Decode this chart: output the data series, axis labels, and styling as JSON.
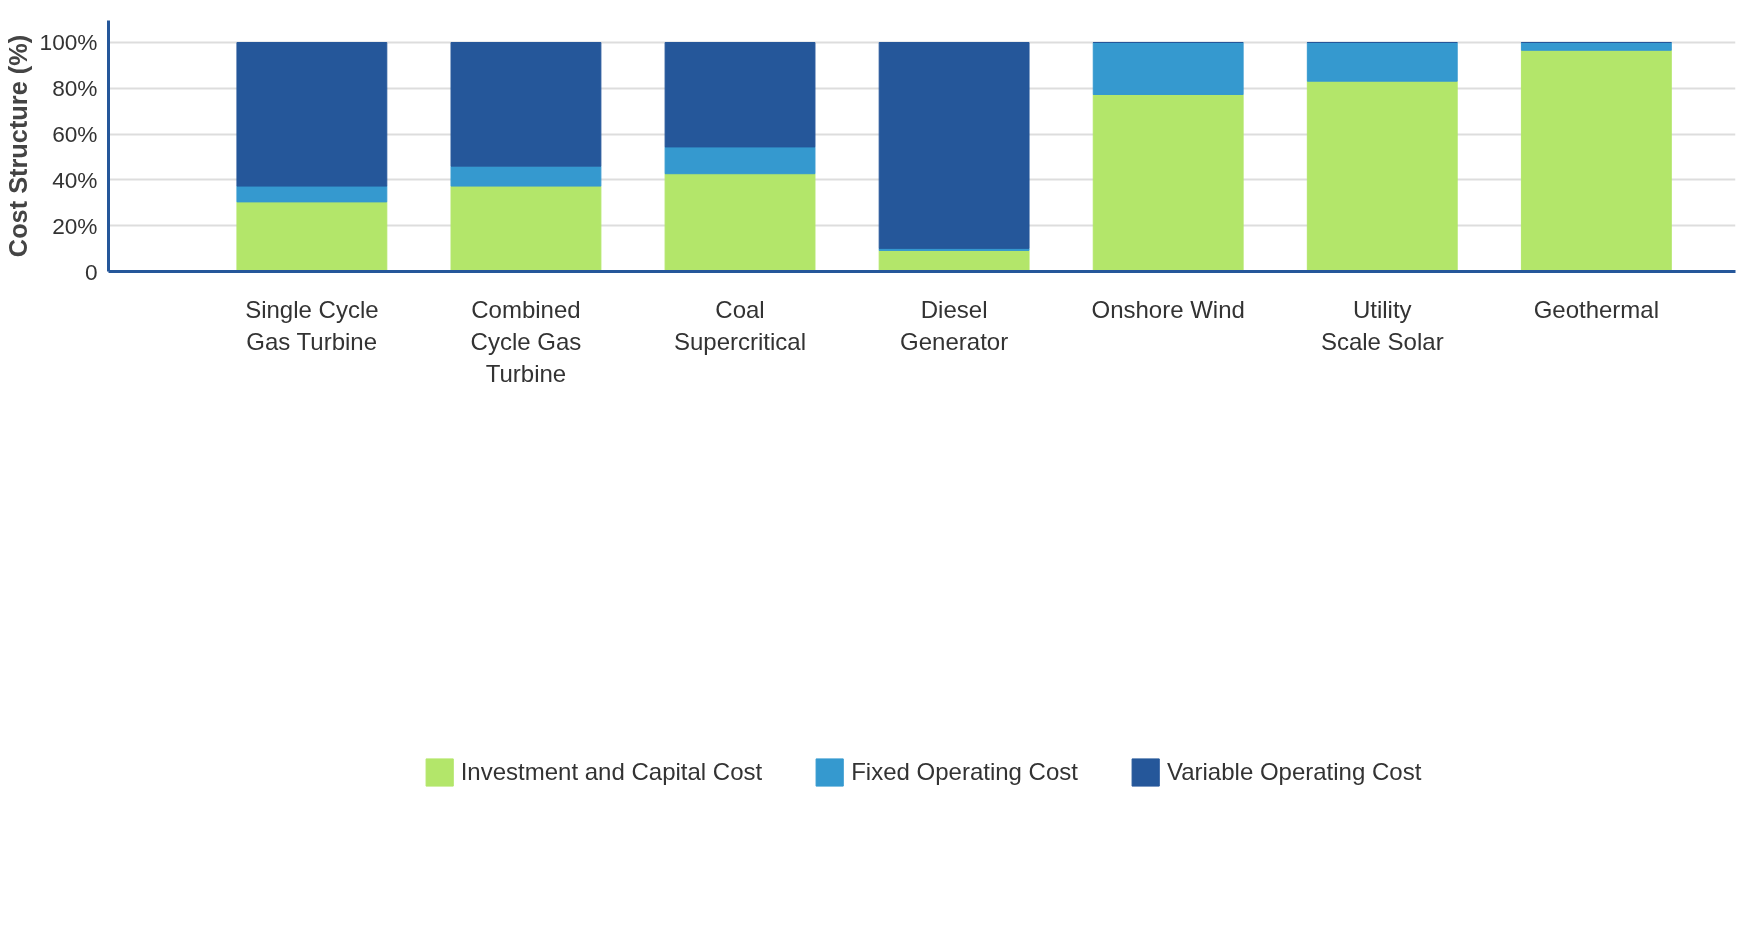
{
  "chart_data": {
    "type": "bar",
    "stacked": true,
    "ylabel": "Cost Structure (%)",
    "categories": [
      "Single Cycle Gas Turbine",
      "Combined Cycle Gas Turbine",
      "Coal Supercritical",
      "Diesel Generator",
      "Onshore Wind",
      "Utility Scale Solar",
      "Geothermal"
    ],
    "series": [
      {
        "name": "Investment and Capital Cost",
        "color": "#b3e66a",
        "values": [
          30.4,
          37.3,
          42.7,
          9.2,
          77.3,
          83.1,
          96.6
        ]
      },
      {
        "name": "Fixed Operating Cost",
        "color": "#3599cf",
        "values": [
          6.9,
          8.7,
          11.7,
          0.9,
          22.7,
          16.9,
          3.4
        ]
      },
      {
        "name": "Variable Operating Cost",
        "color": "#25579a",
        "values": [
          62.7,
          54.0,
          45.6,
          89.9,
          0,
          0,
          0
        ]
      }
    ],
    "ylim": [
      0,
      109.6
    ],
    "yticks": [
      0,
      {
        "value": 20,
        "label": "20%"
      },
      {
        "value": 40,
        "label": "40%"
      },
      {
        "value": 60,
        "label": "60%"
      },
      {
        "value": 80,
        "label": "80%"
      },
      {
        "value": 100,
        "label": "100%"
      }
    ],
    "grid": "y",
    "legend": "bottom"
  }
}
